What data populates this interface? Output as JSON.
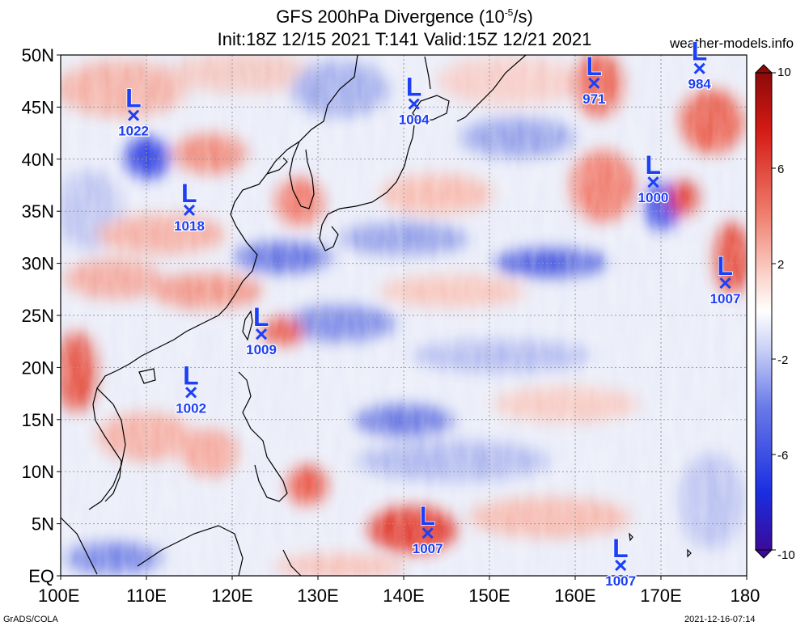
{
  "header": {
    "title_main": "GFS 200hPa Divergence (10",
    "title_exp": "-5",
    "title_unit": "/s)",
    "subtitle": "Init:18Z 12/15 2021 T:141 Valid:15Z 12/21 2021",
    "website": "weather-models.info"
  },
  "footer": {
    "left": "GrADS/COLA",
    "right": "2021-12-16-07:14"
  },
  "map": {
    "lat_labels": [
      "50N",
      "45N",
      "40N",
      "35N",
      "30N",
      "25N",
      "20N",
      "15N",
      "10N",
      "5N",
      "EQ"
    ],
    "lon_labels": [
      "100E",
      "110E",
      "120E",
      "130E",
      "140E",
      "150E",
      "160E",
      "170E",
      "180"
    ],
    "lat_range": [
      0,
      50
    ],
    "lon_range": [
      100,
      180
    ],
    "lows": [
      {
        "lon": 108.5,
        "lat": 44.2,
        "pressure": "1022"
      },
      {
        "lon": 115.0,
        "lat": 35.1,
        "pressure": "1018"
      },
      {
        "lon": 141.2,
        "lat": 45.3,
        "pressure": "1004"
      },
      {
        "lon": 162.2,
        "lat": 47.3,
        "pressure": "971"
      },
      {
        "lon": 174.5,
        "lat": 48.7,
        "pressure": "984"
      },
      {
        "lon": 169.1,
        "lat": 37.8,
        "pressure": "1000"
      },
      {
        "lon": 177.5,
        "lat": 28.1,
        "pressure": "1007"
      },
      {
        "lon": 123.4,
        "lat": 23.2,
        "pressure": "1009"
      },
      {
        "lon": 115.2,
        "lat": 17.6,
        "pressure": "1002"
      },
      {
        "lon": 142.8,
        "lat": 4.1,
        "pressure": "1007"
      },
      {
        "lon": 165.3,
        "lat": 1.0,
        "pressure": "1007"
      }
    ]
  },
  "colorbar": {
    "ticks": [
      "10",
      "6",
      "2",
      "-2",
      "-6",
      "-10"
    ],
    "tick_values": [
      10,
      6,
      2,
      -2,
      -6,
      -10
    ],
    "colors": {
      "max": "#8b0a0a",
      "red": "#e0201a",
      "light_red": "#f59a8a",
      "white": "#ffffff",
      "light_blue": "#9aa8ee",
      "blue": "#1a2ee0",
      "min": "#3a0a9a"
    }
  }
}
